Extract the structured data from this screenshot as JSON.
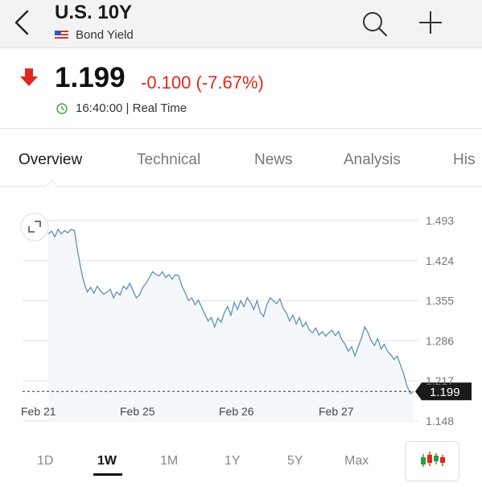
{
  "header": {
    "title": "U.S. 10Y",
    "subtitle": "Bond Yield"
  },
  "quote": {
    "price": "1.199",
    "change": "-0.100 (-7.67%)",
    "time": "16:40:00 | Real Time",
    "direction": "down",
    "down_color": "#e0281e"
  },
  "tabs": [
    {
      "label": "Overview",
      "active": true
    },
    {
      "label": "Technical"
    },
    {
      "label": "News"
    },
    {
      "label": "Analysis"
    },
    {
      "label": "His"
    }
  ],
  "periods": [
    {
      "label": "1D"
    },
    {
      "label": "1W",
      "active": true
    },
    {
      "label": "1M"
    },
    {
      "label": "1Y"
    },
    {
      "label": "5Y"
    },
    {
      "label": "Max"
    }
  ],
  "chart_data": {
    "type": "line",
    "x_ticks": [
      "Feb 21",
      "Feb 25",
      "Feb 26",
      "Feb 27"
    ],
    "y_ticks": [
      "1.493",
      "1.424",
      "1.355",
      "1.286",
      "1.217",
      "1.148"
    ],
    "ylim": [
      1.148,
      1.493
    ],
    "grid": true,
    "line_color": "#5f8fb5",
    "last_value": "1.199",
    "series": [
      {
        "values": [
          1.47,
          1.475,
          1.465,
          1.478,
          1.47,
          1.476,
          1.472,
          1.478,
          1.476,
          1.44,
          1.41,
          1.385,
          1.37,
          1.378,
          1.368,
          1.38,
          1.372,
          1.366,
          1.37,
          1.375,
          1.36,
          1.37,
          1.365,
          1.38,
          1.375,
          1.385,
          1.372,
          1.36,
          1.365,
          1.378,
          1.385,
          1.395,
          1.405,
          1.4,
          1.398,
          1.405,
          1.395,
          1.4,
          1.392,
          1.4,
          1.398,
          1.38,
          1.368,
          1.355,
          1.36,
          1.348,
          1.356,
          1.344,
          1.332,
          1.32,
          1.326,
          1.31,
          1.325,
          1.318,
          1.335,
          1.345,
          1.33,
          1.352,
          1.34,
          1.355,
          1.345,
          1.36,
          1.352,
          1.34,
          1.355,
          1.335,
          1.328,
          1.348,
          1.36,
          1.355,
          1.35,
          1.358,
          1.342,
          1.334,
          1.32,
          1.33,
          1.315,
          1.326,
          1.31,
          1.318,
          1.305,
          1.3,
          1.308,
          1.296,
          1.302,
          1.294,
          1.3,
          1.304,
          1.295,
          1.302,
          1.288,
          1.28,
          1.268,
          1.276,
          1.26,
          1.276,
          1.29,
          1.31,
          1.3,
          1.286,
          1.278,
          1.29,
          1.272,
          1.28,
          1.268,
          1.262,
          1.254,
          1.26,
          1.244,
          1.228,
          1.208,
          1.195,
          1.199
        ]
      }
    ]
  }
}
